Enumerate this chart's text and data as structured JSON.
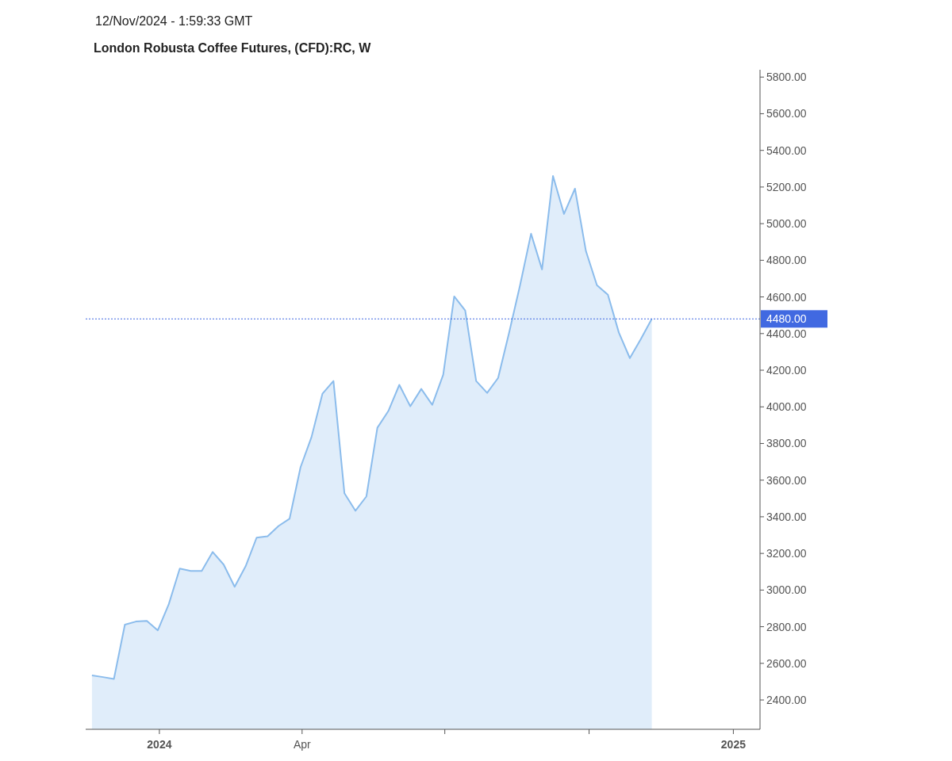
{
  "chart_data": {
    "type": "area",
    "title": "London Robusta Coffee Futures, (CFD):RC, W",
    "annotations": [
      "12/Nov/2024 - 1:59:33 GMT"
    ],
    "x": [
      "2023-11-19",
      "2023-11-26",
      "2023-12-03",
      "2023-12-10",
      "2023-12-17",
      "2023-12-24",
      "2023-12-31",
      "2024-01-07",
      "2024-01-14",
      "2024-01-21",
      "2024-01-28",
      "2024-02-04",
      "2024-02-11",
      "2024-02-18",
      "2024-02-25",
      "2024-03-03",
      "2024-03-10",
      "2024-03-17",
      "2024-03-24",
      "2024-03-31",
      "2024-04-07",
      "2024-04-14",
      "2024-04-21",
      "2024-04-28",
      "2024-05-05",
      "2024-05-12",
      "2024-05-19",
      "2024-05-26",
      "2024-06-02",
      "2024-06-09",
      "2024-06-16",
      "2024-06-23",
      "2024-06-30",
      "2024-07-07",
      "2024-07-14",
      "2024-07-21",
      "2024-07-28",
      "2024-08-04",
      "2024-08-11",
      "2024-08-18",
      "2024-08-25",
      "2024-09-01",
      "2024-09-08",
      "2024-09-15",
      "2024-09-22",
      "2024-09-29",
      "2024-10-06",
      "2024-10-13",
      "2024-10-20",
      "2024-10-27",
      "2024-11-03",
      "2024-11-10"
    ],
    "series": [
      {
        "color": "#8bbcec",
        "values": [
          2534,
          2525,
          2515,
          2811,
          2828,
          2832,
          2780,
          2923,
          3117,
          3104,
          3104,
          3208,
          3139,
          3018,
          3130,
          3286,
          3294,
          3350,
          3389,
          3670,
          3835,
          4072,
          4141,
          3528,
          3433,
          3511,
          3886,
          3977,
          4120,
          4003,
          4098,
          4011,
          4176,
          4603,
          4526,
          4141,
          4076,
          4158,
          4405,
          4664,
          4945,
          4750,
          5260,
          5053,
          5191,
          4850,
          4664,
          4612,
          4405,
          4266,
          4370,
          4480
        ]
      }
    ],
    "xlim": [
      "2023-11-15",
      "2025-01-18"
    ],
    "xticks": [
      {
        "value": "2024-01-01",
        "label": "2024"
      },
      {
        "value": "2024-04-01",
        "label": "Apr"
      },
      {
        "value": "2024-07-01",
        "label": null
      },
      {
        "value": "2024-10-01",
        "label": null
      },
      {
        "value": "2025-01-01",
        "label": "2025"
      }
    ],
    "ylim": [
      2240,
      5840
    ],
    "yticks": [
      {
        "value": 2400,
        "label": "2400.00"
      },
      {
        "value": 2600,
        "label": "2600.00"
      },
      {
        "value": 2800,
        "label": "2800.00"
      },
      {
        "value": 3000,
        "label": "3000.00"
      },
      {
        "value": 3200,
        "label": "3200.00"
      },
      {
        "value": 3400,
        "label": "3400.00"
      },
      {
        "value": 3600,
        "label": "3600.00"
      },
      {
        "value": 3800,
        "label": "3800.00"
      },
      {
        "value": 4000,
        "label": "4000.00"
      },
      {
        "value": 4200,
        "label": "4200.00"
      },
      {
        "value": 4400,
        "label": "4400.00"
      },
      {
        "value": 4600,
        "label": "4600.00"
      },
      {
        "value": 4800,
        "label": "4800.00"
      },
      {
        "value": 5000,
        "label": "5000.00"
      },
      {
        "value": 5200,
        "label": "5200.00"
      },
      {
        "value": 5400,
        "label": "5400.00"
      },
      {
        "value": 5600,
        "label": "5600.00"
      },
      {
        "value": 5800,
        "label": "5800.00"
      }
    ],
    "ref_lines": [
      {
        "axis": "y",
        "value": 4480,
        "label": "4480.00",
        "color": "#4169e1",
        "line_style": "dotted"
      }
    ],
    "grid": false
  }
}
